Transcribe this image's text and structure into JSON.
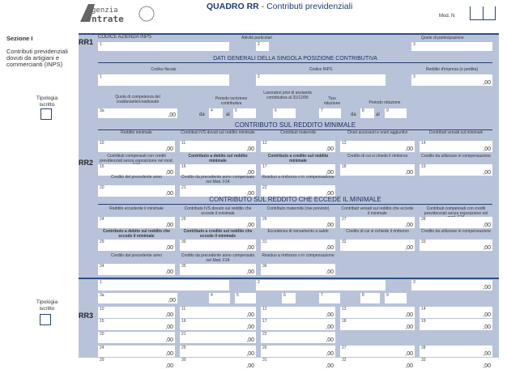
{
  "header": {
    "logo_text": "Agenzia Entrate",
    "title_bold": "QUADRO RR",
    "title_rest": " - Contributi previdenziali",
    "mod_label": "Mod. N"
  },
  "side": {
    "section": "Sezione I",
    "description": "Contributi previdenziali dovuti da artigiani e commercianti (INPS)",
    "tipologia": "Tipologia iscritto"
  },
  "rows": {
    "rr1": "RR1",
    "rr2": "RR2",
    "rr3": "RR3"
  },
  "rr1": {
    "codice_azienda": "CODICE AZIENDA INPS",
    "attivita": "Attività particolari",
    "quote": "Quote di partecipazione",
    "n1": "1",
    "n2": "2",
    "n3": "3"
  },
  "dati_generali": {
    "title": "DATI GENERALI DELLA SINGOLA POSIZIONE CONTRIBUTIVA",
    "codice_fiscale": "Codice fiscale",
    "codice_inps": "Codice INPS",
    "reddito": "Reddito d'impresa (o perdita)",
    "quota": "Quota di competenza del coadiuvante/coadiuvato",
    "periodo": "Periodo iscrizione contributiva",
    "lavoratori": "Lavoratori privi di anzianità contributiva al 31/12/95",
    "tipo_riduzione": "Tipo riduzione",
    "periodo_riduzione": "Periodo riduzione",
    "da": "da",
    "al": "al",
    "n1": "1",
    "n2": "2",
    "n3": "3",
    "n3a": "3a",
    "n4": "4",
    "n5": "5",
    "n6": "6",
    "n7": "7",
    "n8": "8",
    "n9": "9",
    "zero": ",00"
  },
  "minimale": {
    "title": "CONTRIBUTO SUL REDDITO MINIMALE",
    "rows": [
      [
        {
          "num": "10",
          "label": "Reddito minimale",
          "value": ",00"
        },
        {
          "num": "11",
          "label": "Contributi IVS dovuti sul reddito minimale",
          "value": ",00"
        },
        {
          "num": "12",
          "label": "Contributi maternità",
          "value": ",00"
        },
        {
          "num": "13",
          "label": "Oneri accessori e oneri aggiuntivi",
          "value": ",00"
        },
        {
          "num": "14",
          "label": "Contributi versati sul minimale",
          "value": ",00"
        }
      ],
      [
        {
          "num": "15",
          "label": "Contributi compensati con crediti previdenziali senza esposizione nel mod. F24",
          "value": ",00"
        },
        {
          "num": "16",
          "label": "Contributo a debito sul reddito minimale",
          "value": ",00",
          "bold": true
        },
        {
          "num": "17",
          "label": "Contributo a credito sul reddito minimale",
          "value": ",00",
          "bold": true
        },
        {
          "num": "18",
          "label": "Credito di cui si chiede il rimborso",
          "value": ",00"
        },
        {
          "num": "19",
          "label": "Credito da utilizzare in compensazione",
          "value": ",00"
        }
      ],
      [
        {
          "num": "20",
          "label": "Credito del precedente anno",
          "value": ",00"
        },
        {
          "num": "21",
          "label": "Credito da precedente anno compensato nel Mod. F24",
          "value": ",00"
        },
        {
          "num": "22",
          "label": "Residuo a rimborso o in compensazione",
          "value": ",00"
        }
      ]
    ]
  },
  "eccedente": {
    "title": "CONTRIBUTO SUL REDDITO CHE ECCEDE IL MINIMALE",
    "rows": [
      [
        {
          "num": "24",
          "label": "Reddito eccedente il minimale",
          "value": ",00"
        },
        {
          "num": "25",
          "label": "Contributo IVS dovuto sul reddito che eccede il minimale",
          "value": ",00"
        },
        {
          "num": "26",
          "label": "Contributo maternità (ove previsto)",
          "value": ",00"
        },
        {
          "num": "27",
          "label": "Contributi versati sul reddito che eccede il minimale",
          "value": ",00"
        },
        {
          "num": "28",
          "label": "Contributi compensati con crediti previdenziali senza esposizione nel mod. F24",
          "value": ",00"
        }
      ],
      [
        {
          "num": "29",
          "label": "Contributo a debito sul reddito che eccede il minimale",
          "value": ",00",
          "bold": true
        },
        {
          "num": "30",
          "label": "Contributo a credito sul reddito che eccede il minimale",
          "value": ",00",
          "bold": true
        },
        {
          "num": "31",
          "label": "Eccedenza di versamento a saldo",
          "value": ",00"
        },
        {
          "num": "32",
          "label": "Credito di cui si richiede il rimborso",
          "value": ",00"
        },
        {
          "num": "33",
          "label": "Credito da utilizzare in compensazione",
          "value": ",00"
        }
      ],
      [
        {
          "num": "34",
          "label": "Credito dal precedente anno",
          "value": ",00"
        },
        {
          "num": "35",
          "label": "Credito da precedente anno compensato nel Mod. F24",
          "value": ",00"
        },
        {
          "num": "36",
          "label": "Residuo a rimborso o in compensazione",
          "value": ",00"
        }
      ]
    ]
  },
  "rr3": {
    "rows": [
      [
        {
          "num": "10",
          "value": ",00"
        },
        {
          "num": "11",
          "value": ",00"
        },
        {
          "num": "12",
          "value": ",00"
        },
        {
          "num": "13",
          "value": ",00"
        },
        {
          "num": "14",
          "value": ",00"
        }
      ],
      [
        {
          "num": "15",
          "value": ",00"
        },
        {
          "num": "16",
          "value": ",00"
        },
        {
          "num": "17",
          "value": ",00"
        },
        {
          "num": "18",
          "value": ",00"
        },
        {
          "num": "19",
          "value": ",00"
        }
      ],
      [
        {
          "num": "20",
          "value": ",00"
        },
        {
          "num": "21",
          "value": ",00"
        },
        {
          "num": "22",
          "value": ",00"
        }
      ],
      [
        {
          "num": "24",
          "value": ",00"
        },
        {
          "num": "25",
          "value": ",00"
        },
        {
          "num": "26",
          "value": ",00"
        },
        {
          "num": "27",
          "value": ",00"
        },
        {
          "num": "28",
          "value": ",00"
        }
      ],
      [
        {
          "num": "29",
          "value": ",00"
        },
        {
          "num": "30",
          "value": ",00"
        },
        {
          "num": "31",
          "value": ",00"
        },
        {
          "num": "32",
          "value": ",00"
        },
        {
          "num": "33",
          "value": ",00"
        }
      ]
    ]
  }
}
